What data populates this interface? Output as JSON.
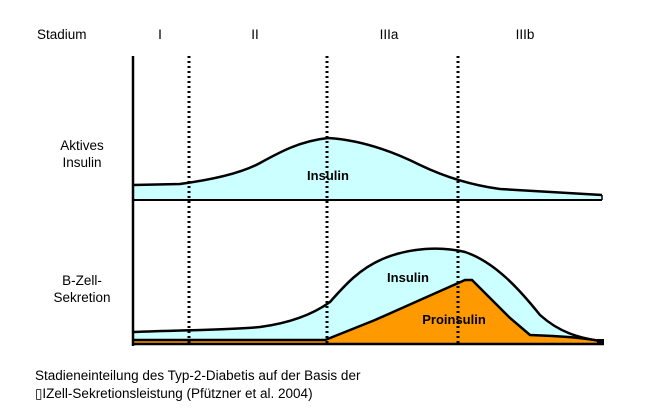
{
  "header": {
    "stage_label": "Stadium",
    "stages": [
      "I",
      "II",
      "IIIa",
      "IIIb"
    ]
  },
  "row_labels": {
    "top": [
      "Aktives",
      "Insulin"
    ],
    "bottom": [
      "B-Zell-",
      "Sekretion"
    ]
  },
  "curve_labels": {
    "top_insulin": "Insulin",
    "bottom_insulin": "Insulin",
    "bottom_proinsulin": "Proinsulin"
  },
  "caption": {
    "line1": "Stadieneinteilung des Typ-2-Diabetis auf der Basis der",
    "line2": "▯IZell-Sekretionsleistung (Pfützner et al. 2004)"
  },
  "colors": {
    "insulin_fill": "#ccffff",
    "proinsulin_fill": "#ff9900",
    "line": "#000000"
  }
}
